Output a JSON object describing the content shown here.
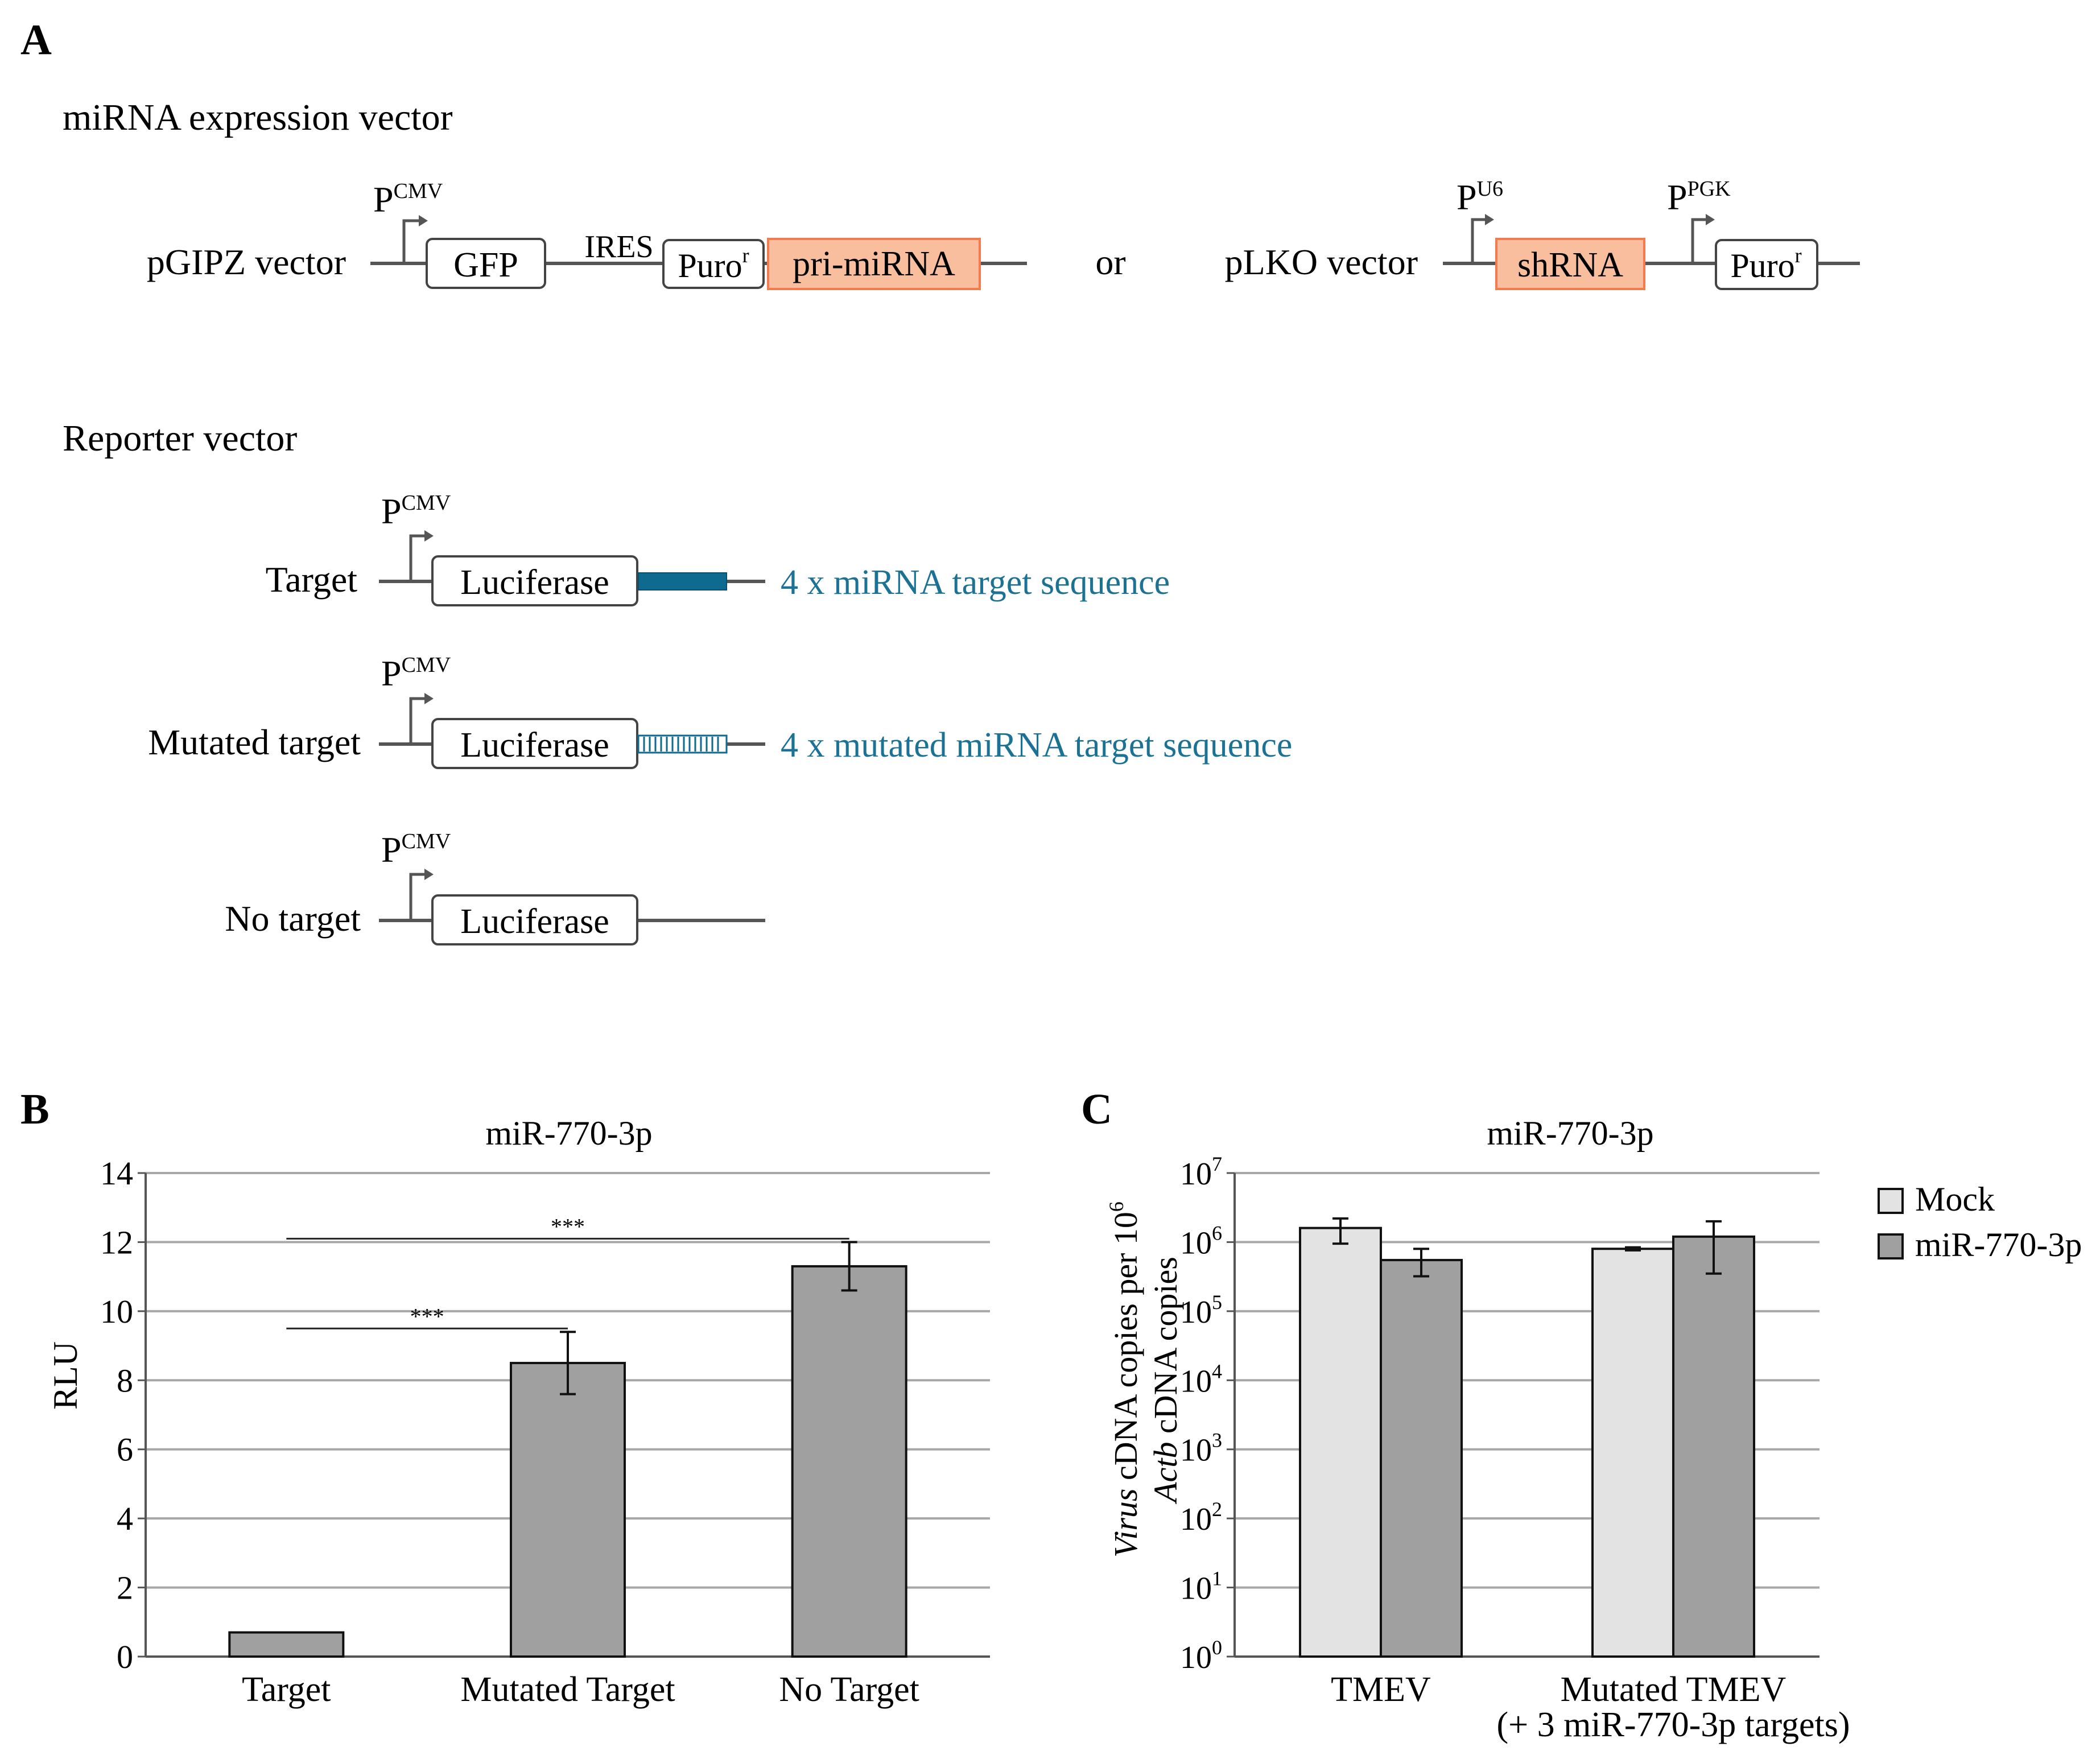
{
  "panel_a": {
    "letter": "A",
    "mirna_section_title": "miRNA expression vector",
    "reporter_section_title": "Reporter vector",
    "promoter_p": "P",
    "cmv": "CMV",
    "u6": "U6",
    "pgk": "PGK",
    "pgipz_label": "pGIPZ vector",
    "gfp": "GFP",
    "ires": "IRES",
    "puro": "Puro",
    "puro_sup": "r",
    "pri_mirna": "pri-miRNA",
    "or_word": "or",
    "plko_label": "pLKO vector",
    "shrna": "shRNA",
    "target_label": "Target",
    "mutated_label": "Mutated target",
    "no_target_label": "No target",
    "luciferase": "Luciferase",
    "target_seq_text": "4 x miRNA target sequence",
    "mutated_seq_text": "4 x mutated miRNA target sequence",
    "colors": {
      "line": "#555555",
      "accent_fill": "#f9be9e",
      "accent_border": "#f47a4f",
      "target_blue": "#0e6a8e",
      "text_blue": "#1b7295"
    }
  },
  "chart_data": [
    {
      "panel": "B",
      "type": "bar",
      "title": "miR-770-3p",
      "categories": [
        "Target",
        "Mutated Target",
        "No Target"
      ],
      "values": [
        0.7,
        8.5,
        11.3
      ],
      "errors": [
        0,
        0.9,
        0.7
      ],
      "ylabel": "RLU",
      "xlabel": "",
      "ylim": [
        0,
        14
      ],
      "yticks": [
        "0",
        "2",
        "4",
        "6",
        "8",
        "10",
        "12",
        "14"
      ],
      "grid": true,
      "significance": [
        {
          "from": "Target",
          "to": "Mutated Target",
          "label": "***"
        },
        {
          "from": "Target",
          "to": "No Target",
          "label": "***"
        }
      ],
      "bar_color": "#a0a0a0"
    },
    {
      "panel": "C",
      "type": "bar",
      "scale": "log10",
      "title": "miR-770-3p",
      "categories": [
        "TMEV",
        "Mutated TMEV"
      ],
      "category_sublabels": [
        "",
        "(+ 3 miR-770-3p targets)"
      ],
      "series": [
        {
          "name": "Mock",
          "values": [
            1600000,
            800000
          ],
          "err_low": [
            950000,
            760000
          ],
          "err_high": [
            2200000,
            840000
          ],
          "color": "#e3e3e3"
        },
        {
          "name": "miR-770-3p",
          "values": [
            550000,
            1200000
          ],
          "err_low": [
            320000,
            350000
          ],
          "err_high": [
            800000,
            2000000
          ],
          "color": "#a0a0a0"
        }
      ],
      "ylabel_line1": [
        "Virus",
        " cDNA copies per 10",
        "6"
      ],
      "ylabel_line2": [
        "Actb",
        " cDNA copies"
      ],
      "ylim_exponents": [
        0,
        7
      ],
      "ytick_base": "10",
      "ytick_exponents": [
        "0",
        "1",
        "2",
        "3",
        "4",
        "5",
        "6",
        "7"
      ],
      "legend_position": "top-right",
      "grid": true
    }
  ],
  "panel_letters": {
    "b": "B",
    "c": "C"
  }
}
